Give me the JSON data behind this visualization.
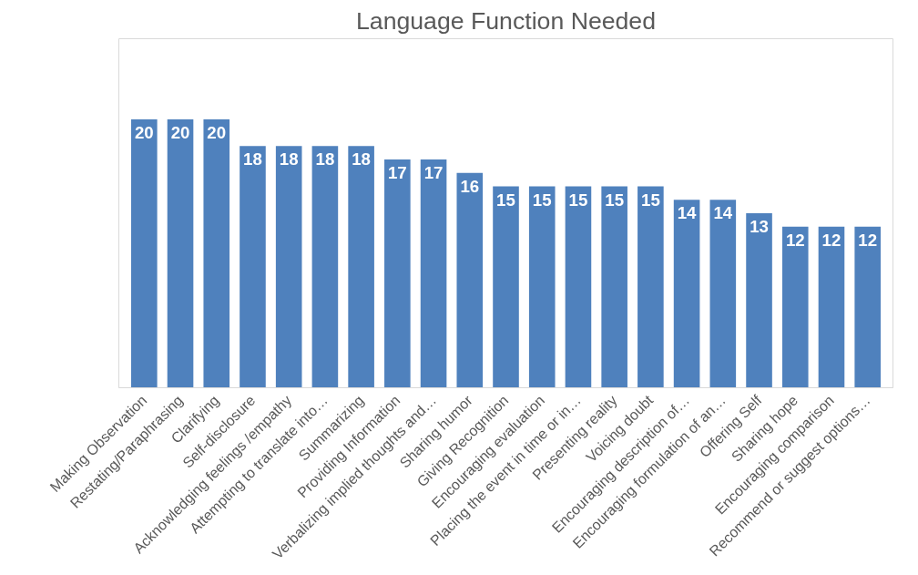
{
  "chart_data": {
    "type": "bar",
    "title": "Language Function Needed",
    "categories": [
      "Making Observation",
      "Restating/Paraphrasing",
      "Clarifying",
      "Self-disclosure",
      "Acknowledging feelings /empathy",
      "Attempting to translate into…",
      "Summarizing",
      "Providing Information",
      "Verbalizing implied thoughts and…",
      "Sharing humor",
      "Giving Recognition",
      "Encouraging evaluation",
      "Placing the event in time or in…",
      "Presenting reality",
      "Voicing doubt",
      "Encouraging description of…",
      "Encouraging formulation of an…",
      "Offering Self",
      "Sharing hope",
      "Encouraging comparison",
      "Recommend or suggest options…"
    ],
    "values": [
      20,
      20,
      20,
      18,
      18,
      18,
      18,
      17,
      17,
      16,
      15,
      15,
      15,
      15,
      15,
      14,
      14,
      13,
      12,
      12,
      12
    ],
    "color": "#4f81bd",
    "data_labels": true,
    "grid": false
  }
}
